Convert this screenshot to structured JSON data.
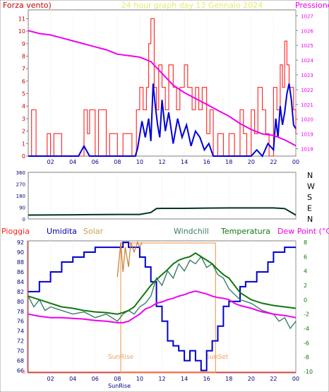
{
  "header": {
    "left_label": "Forza vento)",
    "title": "24 hour graph day  13 Gennaio 2024",
    "right_label": "Pressione"
  },
  "colors": {
    "frame": "#7f7f7f",
    "grid": "#d8d8d8",
    "wind": "#ff2020",
    "wind_label": "#cc0000",
    "gust": "#0000dd",
    "pressure": "#ee00ee",
    "direction": "#003322",
    "rain": "#ff4040",
    "humidity": "#0000cc",
    "solar": "#c87c30",
    "windchill": "#3a7d6a",
    "temperature": "#117711",
    "dewpoint": "#ee00ee",
    "sun": "#f0a060"
  },
  "chart_data": [
    {
      "type": "line",
      "name": "wind-pressure",
      "x_ticks": [
        "02",
        "04",
        "06",
        "08",
        "10",
        "12",
        "14",
        "16",
        "18",
        "20",
        "22",
        "00"
      ],
      "left_axis": {
        "label": "Forza vento)",
        "ticks": [
          0,
          1,
          2,
          3,
          4,
          5,
          6,
          7,
          8,
          9,
          10,
          11
        ],
        "ylim": [
          0,
          11.7
        ]
      },
      "right_axis": {
        "label": "Pressione",
        "ticks": [
          1018,
          1019,
          1020,
          1021,
          1022,
          1023,
          1024,
          1025,
          1026,
          1027
        ],
        "ylim": [
          1017.5,
          1027.4
        ]
      },
      "series": [
        {
          "kind": "wind",
          "x": [
            0,
            0.3,
            0.7,
            1.0,
            1.7,
            2.0,
            2.3,
            3.0,
            4.7,
            5.0,
            5.3,
            5.5,
            6.0,
            6.3,
            7.0,
            7.3,
            8.0,
            8.5,
            9.3,
            9.7,
            10.0,
            10.3,
            10.6,
            10.8,
            11.0,
            11.3,
            11.5,
            11.7,
            12.0,
            12.3,
            12.6,
            13.0,
            13.3,
            13.6,
            14.0,
            14.3,
            14.7,
            15.0,
            15.3,
            15.6,
            16.0,
            16.3,
            16.6,
            17.0,
            17.5,
            18.0,
            18.5,
            19.0,
            19.3,
            19.6,
            20.0,
            20.3,
            20.6,
            21.0,
            21.3,
            21.6,
            22.0,
            22.3,
            22.6,
            22.8,
            23.0,
            23.2,
            23.4,
            23.6,
            23.8,
            24.0
          ],
          "values": [
            0,
            3.7,
            0,
            0,
            1.8,
            0,
            1.8,
            0,
            0,
            3.7,
            1.8,
            3.7,
            0,
            3.7,
            0,
            1.8,
            0,
            1.8,
            0,
            3.7,
            5.5,
            3.7,
            5.5,
            9,
            11,
            5.5,
            3.7,
            7.3,
            5.5,
            3.7,
            7.3,
            5.5,
            3.7,
            5.5,
            7.3,
            5.5,
            3.7,
            5.5,
            3.7,
            5.5,
            1.8,
            3.7,
            0,
            1.8,
            0,
            1.8,
            0,
            3.7,
            1.8,
            0,
            3.7,
            1.8,
            5.5,
            3.7,
            1.8,
            0,
            5.5,
            3.7,
            7.3,
            5.5,
            9.2,
            7.3,
            5.5,
            5.5,
            3.7,
            1.8
          ]
        },
        {
          "kind": "gust",
          "x": [
            0,
            4.5,
            5.0,
            5.5,
            8.0,
            9.6,
            9.8,
            10.2,
            10.5,
            10.8,
            11.0,
            11.2,
            11.4,
            11.6,
            11.8,
            12.0,
            12.3,
            12.6,
            13.0,
            13.4,
            13.8,
            14.2,
            14.6,
            15.0,
            15.4,
            15.8,
            16.2,
            16.6,
            17.0,
            17.5,
            18.0,
            19.0,
            19.5,
            20.0,
            20.5,
            21.0,
            21.5,
            22.0,
            22.2,
            22.4,
            22.6,
            22.8,
            23.0,
            23.2,
            23.4,
            23.6,
            23.8,
            24.0
          ],
          "values": [
            0,
            0,
            0.8,
            0,
            0,
            0,
            0.6,
            2.8,
            1.5,
            3.0,
            1.2,
            5.8,
            4.0,
            2.5,
            1.5,
            4.5,
            2.0,
            3.5,
            1.0,
            3.0,
            1.5,
            2.5,
            0.8,
            2.0,
            1.5,
            0.5,
            1.0,
            0,
            0,
            0,
            0,
            0,
            0,
            0,
            0.5,
            0,
            1.0,
            0.5,
            3.0,
            1.5,
            4.0,
            2.5,
            3.5,
            5.0,
            5.8,
            4.5,
            2.5,
            2.2
          ]
        },
        {
          "kind": "pressure",
          "x": [
            0,
            1,
            2,
            3,
            4,
            5,
            6,
            7,
            8,
            9,
            10,
            11,
            12,
            13,
            14,
            15,
            16,
            17,
            18,
            19,
            20,
            21,
            22,
            23,
            24
          ],
          "values": [
            1026.0,
            1025.8,
            1025.7,
            1025.5,
            1025.3,
            1025.1,
            1024.9,
            1024.7,
            1024.4,
            1024.3,
            1024.2,
            1023.9,
            1023.1,
            1022.3,
            1021.8,
            1021.4,
            1021.0,
            1020.6,
            1020.2,
            1019.7,
            1019.3,
            1019.0,
            1018.9,
            1018.6,
            1018.2
          ]
        }
      ]
    },
    {
      "type": "line",
      "name": "wind-direction",
      "right_labels": [
        "N",
        "W",
        "S",
        "E",
        "N"
      ],
      "left_axis": {
        "ticks": [
          0,
          90,
          180,
          270,
          360
        ],
        "ylim": [
          0,
          360
        ]
      },
      "series": [
        {
          "kind": "direction",
          "x": [
            0,
            4,
            8,
            10,
            11,
            11.5,
            12,
            14,
            16,
            18,
            20,
            22,
            23,
            23.5,
            24
          ],
          "values": [
            30,
            32,
            35,
            35,
            50,
            80,
            82,
            82,
            84,
            85,
            85,
            85,
            80,
            55,
            30
          ]
        }
      ]
    },
    {
      "type": "line",
      "name": "weather",
      "labels": {
        "rain": "Pioggia",
        "humidity": "Umidita",
        "solar": "Solar",
        "windchill": "Windchill",
        "temperature": "Temperatura",
        "dewpoint": "Dew Point (°C)"
      },
      "sun_labels": {
        "rise": "SunRise",
        "set": "SunSet"
      },
      "sunrise_hour": 8.3,
      "sunset_hour": 16.8,
      "left_axis": {
        "ticks": [
          66,
          68,
          70,
          72,
          74,
          76,
          78,
          80,
          82,
          84,
          86,
          88,
          90,
          92
        ],
        "ylim": [
          65.5,
          92.3
        ]
      },
      "right_axis": {
        "ticks": [
          -10,
          -8,
          -6,
          -4,
          -2,
          0,
          2,
          4,
          6,
          8
        ],
        "ylim": [
          -10.2,
          8.2
        ]
      },
      "series": [
        {
          "kind": "humidity",
          "x": [
            0,
            0.5,
            1,
            1.5,
            2,
            2.5,
            3,
            3.5,
            4,
            4.5,
            5,
            5.5,
            6,
            7,
            8,
            8.5,
            9,
            9.5,
            10,
            10.5,
            11,
            11.5,
            12,
            12.5,
            13,
            13.5,
            14,
            14.5,
            15,
            15.5,
            16,
            16.5,
            17,
            17.5,
            18,
            18.5,
            19,
            19.5,
            20,
            20.5,
            21,
            21.5,
            22,
            23,
            24
          ],
          "values": [
            82,
            82,
            84,
            84,
            86,
            86,
            88,
            88,
            89,
            89,
            90,
            90,
            91,
            91,
            91,
            92,
            91,
            91,
            89,
            87,
            84,
            79,
            76,
            72,
            71,
            70,
            68,
            70,
            68,
            66,
            70,
            72,
            75,
            79,
            80,
            80,
            83,
            84,
            84,
            86,
            86,
            88,
            90,
            91,
            91
          ]
        },
        {
          "kind": "temperature",
          "x": [
            0,
            1,
            2,
            3,
            4,
            5,
            6,
            7,
            8,
            8.5,
            9,
            9.5,
            10,
            10.5,
            11,
            11.5,
            12,
            12.5,
            13,
            13.5,
            14,
            14.5,
            15,
            15.5,
            16,
            16.5,
            17,
            17.5,
            18,
            18.5,
            19,
            20,
            21,
            22,
            23,
            24
          ],
          "values": [
            0.5,
            0,
            -0.5,
            -1,
            -1.2,
            -1.5,
            -1.7,
            -1.8,
            -2,
            -1.8,
            -1.5,
            -1,
            0,
            1,
            2,
            2.8,
            3.5,
            4.2,
            5,
            5.5,
            5.8,
            6,
            6.5,
            6,
            5.5,
            5,
            4.2,
            3.5,
            3,
            2,
            1,
            0,
            -0.5,
            -0.8,
            -1,
            -1.2
          ]
        },
        {
          "kind": "windchill",
          "x": [
            0,
            0.5,
            1,
            1.5,
            2,
            3,
            4,
            5,
            6,
            7,
            8,
            8.5,
            9,
            9.5,
            10,
            10.5,
            11,
            11.5,
            12,
            12.5,
            13,
            13.5,
            14,
            14.5,
            15,
            15.5,
            16,
            16.5,
            17,
            17.5,
            18,
            19,
            20,
            21,
            22,
            22.5,
            23,
            23.5,
            24
          ],
          "values": [
            0.5,
            -1,
            0,
            -1.5,
            -1,
            -1.5,
            -2,
            -1.7,
            -2.5,
            -2,
            -3,
            -2,
            -1.5,
            -2,
            -1,
            -0.5,
            0.5,
            3,
            2,
            4,
            3,
            5,
            4,
            5.5,
            5,
            6,
            4.5,
            5,
            3.5,
            3,
            1.5,
            0,
            -0.5,
            -1.5,
            -2,
            -3,
            -2.5,
            -4,
            -3
          ]
        },
        {
          "kind": "dewpoint",
          "x": [
            0,
            1,
            2,
            3,
            4,
            5,
            6,
            7,
            8,
            8.5,
            9,
            9.5,
            10,
            10.5,
            11,
            11.5,
            12,
            12.5,
            13,
            13.5,
            14,
            14.5,
            15,
            15.5,
            16,
            16.5,
            17,
            17.5,
            18,
            18.5,
            19,
            20,
            21,
            22,
            23,
            24
          ],
          "values": [
            -2,
            -2.3,
            -2.5,
            -2.5,
            -2.6,
            -2.7,
            -2.9,
            -3,
            -3.2,
            -3.2,
            -3,
            -2.5,
            -2,
            -1.3,
            -1,
            -0.5,
            -0.3,
            0,
            0.2,
            0.5,
            0.7,
            1.0,
            1.2,
            1.0,
            0.8,
            0.5,
            0.3,
            0.2,
            0,
            -0.5,
            -0.8,
            -1.2,
            -1.7,
            -2,
            -2.2,
            -2.5
          ]
        },
        {
          "kind": "solar",
          "x": [
            8.0,
            8.3,
            8.5,
            8.7,
            9.0,
            9.2,
            9.5,
            9.8,
            10.0,
            10.2
          ],
          "values": [
            85,
            92,
            86,
            91,
            87,
            92,
            90,
            92,
            91,
            92
          ]
        }
      ],
      "x_ticks": [
        "02",
        "04",
        "06",
        "08",
        "10",
        "12",
        "14",
        "16",
        "18",
        "20",
        "22",
        "00"
      ]
    }
  ]
}
